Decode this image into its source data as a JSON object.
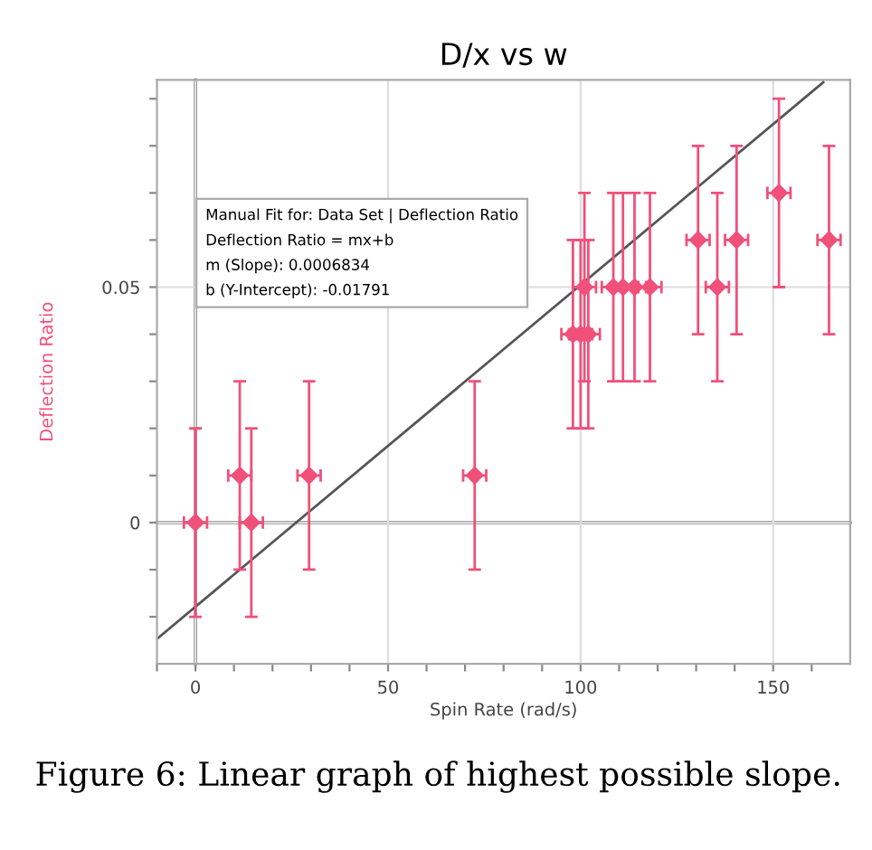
{
  "chart_data": {
    "type": "scatter",
    "title": "D/x vs w",
    "xlabel": "Spin Rate (rad/s)",
    "ylabel": "Deflection Ratio",
    "xlim": [
      -10,
      170
    ],
    "ylim": [
      -0.03,
      0.094
    ],
    "xticks": [
      {
        "value": -10,
        "label": null
      },
      0,
      {
        "value": 10,
        "label": null
      },
      {
        "value": 20,
        "label": null
      },
      {
        "value": 30,
        "label": null
      },
      {
        "value": 40,
        "label": null
      },
      50,
      {
        "value": 60,
        "label": null
      },
      {
        "value": 70,
        "label": null
      },
      {
        "value": 80,
        "label": null
      },
      {
        "value": 90,
        "label": null
      },
      100,
      {
        "value": 110,
        "label": null
      },
      {
        "value": 120,
        "label": null
      },
      {
        "value": 130,
        "label": null
      },
      {
        "value": 140,
        "label": null
      },
      150,
      {
        "value": 160,
        "label": null
      }
    ],
    "yticks": [
      {
        "value": -0.02,
        "label": null
      },
      {
        "value": -0.01,
        "label": null
      },
      0,
      {
        "value": 0.01,
        "label": null
      },
      {
        "value": 0.02,
        "label": null
      },
      {
        "value": 0.03,
        "label": null
      },
      {
        "value": 0.04,
        "label": null
      },
      0.05,
      {
        "value": 0.06,
        "label": null
      },
      {
        "value": 0.07,
        "label": null
      },
      {
        "value": 0.08,
        "label": null
      },
      {
        "value": 0.09,
        "label": null
      }
    ],
    "grid": true,
    "marker": "diamond",
    "series": [
      {
        "color": "#f0507a",
        "x": [
          0,
          11.5,
          14.5,
          29.5,
          72.5,
          98,
          100,
          102,
          101,
          108.5,
          111,
          114,
          118,
          130.5,
          135.5,
          140.5,
          151.5,
          164.5
        ],
        "values": [
          0,
          0.01,
          0,
          0.01,
          0.01,
          0.04,
          0.04,
          0.04,
          0.05,
          0.05,
          0.05,
          0.05,
          0.05,
          0.06,
          0.05,
          0.06,
          0.07,
          0.06
        ],
        "errors": [
          0.02,
          0.02,
          0.02,
          0.02,
          0.02,
          0.02,
          0.02,
          0.02,
          0.02,
          0.02,
          0.02,
          0.02,
          0.02,
          0.02,
          0.02,
          0.02,
          0.02,
          0.02
        ],
        "xerrors": [
          3,
          3,
          3,
          3,
          3,
          3,
          3,
          3,
          3,
          3,
          3,
          3,
          3,
          3,
          3,
          3,
          3,
          3
        ]
      },
      {
        "type": "line",
        "color": "#555555",
        "x": [
          -10,
          163
        ],
        "values": [
          -0.0247,
          0.0935
        ],
        "marker": "none",
        "line_style": "solid"
      }
    ],
    "annotations": [
      "Manual Fit for: Data Set | Deflection Ratio\nDeflection Ratio = mx+b\nm (Slope): 0.0006834\nb (Y-Intercept): -0.01791",
      "Figure 6: Linear graph of highest possible slope."
    ]
  }
}
